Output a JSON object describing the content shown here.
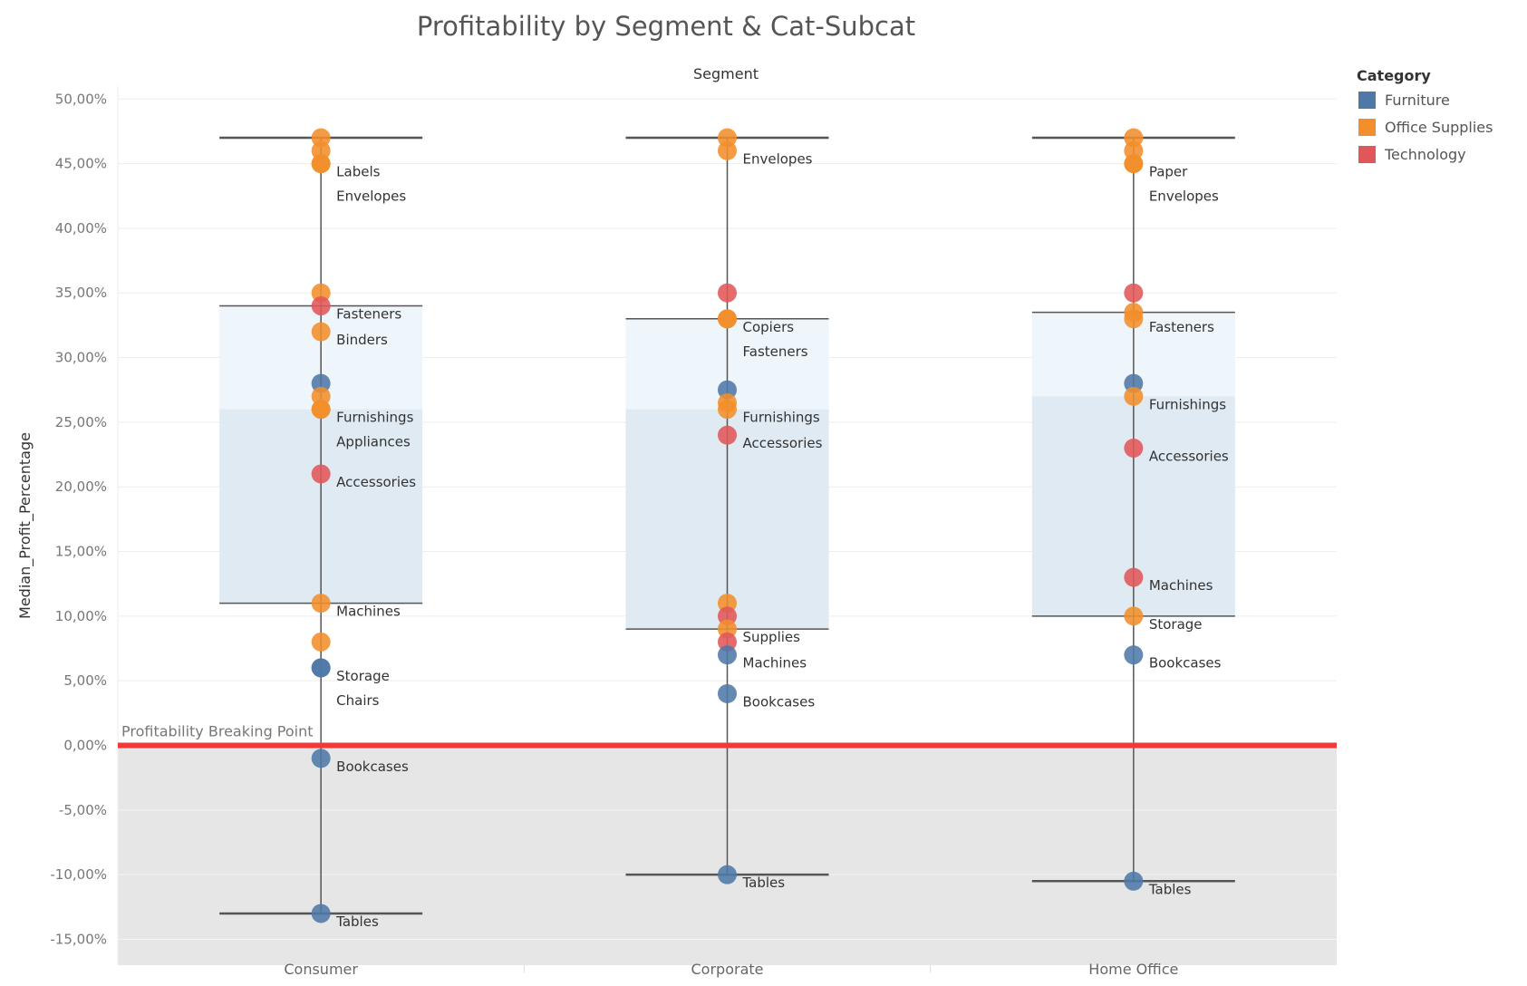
{
  "chart_data": {
    "type": "scatter",
    "title": "Profitability by Segment & Cat-Subcat",
    "column_header": "Segment",
    "ylabel": "Median_Profit_Percentage",
    "ylim": [
      -17,
      51
    ],
    "yticks": [
      50,
      45,
      40,
      35,
      30,
      25,
      20,
      15,
      10,
      5,
      0,
      -5,
      -10,
      -15
    ],
    "ytick_labels": [
      "50,00%",
      "45,00%",
      "40,00%",
      "35,00%",
      "30,00%",
      "25,00%",
      "20,00%",
      "15,00%",
      "10,00%",
      "5,00%",
      "0,00%",
      "-5,00%",
      "-10,00%",
      "-15,00%"
    ],
    "categories": [
      "Consumer",
      "Corporate",
      "Home Office"
    ],
    "grid": true,
    "legend": {
      "title": "Category",
      "position": "top-right",
      "items": [
        {
          "name": "Furniture",
          "color": "#4e79a7"
        },
        {
          "name": "Office Supplies",
          "color": "#f28e2b"
        },
        {
          "name": "Technology",
          "color": "#e15759"
        }
      ]
    },
    "reference_line": {
      "value": 0,
      "label": "Profitability Breaking Point",
      "color": "#f03a3a"
    },
    "boxes": [
      {
        "segment": "Consumer",
        "lower_whisker": -13,
        "q1": 11,
        "median": 26,
        "q3": 34,
        "upper_whisker": 47
      },
      {
        "segment": "Corporate",
        "lower_whisker": -10,
        "q1": 9,
        "median": 26,
        "q3": 33,
        "upper_whisker": 47
      },
      {
        "segment": "Home Office",
        "lower_whisker": -10.5,
        "q1": 10,
        "median": 27,
        "q3": 33.5,
        "upper_whisker": 47
      }
    ],
    "points": [
      {
        "segment": "Consumer",
        "category": "Office Supplies",
        "value": 47
      },
      {
        "segment": "Consumer",
        "category": "Office Supplies",
        "value": 46
      },
      {
        "segment": "Consumer",
        "category": "Office Supplies",
        "value": 45,
        "label": "Labels"
      },
      {
        "segment": "Consumer",
        "category": "Office Supplies",
        "value": 45,
        "label": "Envelopes"
      },
      {
        "segment": "Consumer",
        "category": "Office Supplies",
        "value": 35
      },
      {
        "segment": "Consumer",
        "category": "Technology",
        "value": 34,
        "label": "Fasteners"
      },
      {
        "segment": "Consumer",
        "category": "Office Supplies",
        "value": 32,
        "label": "Binders"
      },
      {
        "segment": "Consumer",
        "category": "Furniture",
        "value": 28
      },
      {
        "segment": "Consumer",
        "category": "Office Supplies",
        "value": 27
      },
      {
        "segment": "Consumer",
        "category": "Office Supplies",
        "value": 26,
        "label": "Furnishings"
      },
      {
        "segment": "Consumer",
        "category": "Office Supplies",
        "value": 26,
        "label": "Appliances"
      },
      {
        "segment": "Consumer",
        "category": "Technology",
        "value": 21,
        "label": "Accessories"
      },
      {
        "segment": "Consumer",
        "category": "Office Supplies",
        "value": 11,
        "label": "Machines"
      },
      {
        "segment": "Consumer",
        "category": "Office Supplies",
        "value": 8
      },
      {
        "segment": "Consumer",
        "category": "Furniture",
        "value": 6,
        "label": "Storage"
      },
      {
        "segment": "Consumer",
        "category": "Furniture",
        "value": 6,
        "label": "Chairs"
      },
      {
        "segment": "Consumer",
        "category": "Furniture",
        "value": -1,
        "label": "Bookcases"
      },
      {
        "segment": "Consumer",
        "category": "Furniture",
        "value": -13,
        "label": "Tables"
      },
      {
        "segment": "Corporate",
        "category": "Office Supplies",
        "value": 47
      },
      {
        "segment": "Corporate",
        "category": "Office Supplies",
        "value": 46,
        "label": "Envelopes"
      },
      {
        "segment": "Corporate",
        "category": "Technology",
        "value": 35
      },
      {
        "segment": "Corporate",
        "category": "Office Supplies",
        "value": 33,
        "label": "Copiers"
      },
      {
        "segment": "Corporate",
        "category": "Office Supplies",
        "value": 33,
        "label": "Fasteners"
      },
      {
        "segment": "Corporate",
        "category": "Furniture",
        "value": 27.5
      },
      {
        "segment": "Corporate",
        "category": "Office Supplies",
        "value": 26.5
      },
      {
        "segment": "Corporate",
        "category": "Office Supplies",
        "value": 26,
        "label": "Furnishings"
      },
      {
        "segment": "Corporate",
        "category": "Technology",
        "value": 24,
        "label": "Accessories"
      },
      {
        "segment": "Corporate",
        "category": "Office Supplies",
        "value": 11
      },
      {
        "segment": "Corporate",
        "category": "Technology",
        "value": 10
      },
      {
        "segment": "Corporate",
        "category": "Office Supplies",
        "value": 9,
        "label": "Supplies"
      },
      {
        "segment": "Corporate",
        "category": "Technology",
        "value": 8
      },
      {
        "segment": "Corporate",
        "category": "Furniture",
        "value": 7,
        "label": "Machines"
      },
      {
        "segment": "Corporate",
        "category": "Furniture",
        "value": 4,
        "label": "Bookcases"
      },
      {
        "segment": "Corporate",
        "category": "Furniture",
        "value": -10,
        "label": "Tables"
      },
      {
        "segment": "Home Office",
        "category": "Office Supplies",
        "value": 47
      },
      {
        "segment": "Home Office",
        "category": "Office Supplies",
        "value": 46
      },
      {
        "segment": "Home Office",
        "category": "Office Supplies",
        "value": 45,
        "label": "Paper"
      },
      {
        "segment": "Home Office",
        "category": "Office Supplies",
        "value": 45,
        "label": "Envelopes"
      },
      {
        "segment": "Home Office",
        "category": "Technology",
        "value": 35
      },
      {
        "segment": "Home Office",
        "category": "Office Supplies",
        "value": 33.5
      },
      {
        "segment": "Home Office",
        "category": "Office Supplies",
        "value": 33,
        "label": "Fasteners"
      },
      {
        "segment": "Home Office",
        "category": "Furniture",
        "value": 28
      },
      {
        "segment": "Home Office",
        "category": "Office Supplies",
        "value": 27,
        "label": "Furnishings"
      },
      {
        "segment": "Home Office",
        "category": "Technology",
        "value": 23,
        "label": "Accessories"
      },
      {
        "segment": "Home Office",
        "category": "Technology",
        "value": 13,
        "label": "Machines"
      },
      {
        "segment": "Home Office",
        "category": "Office Supplies",
        "value": 10,
        "label": "Storage"
      },
      {
        "segment": "Home Office",
        "category": "Furniture",
        "value": 7,
        "label": "Bookcases"
      },
      {
        "segment": "Home Office",
        "category": "Furniture",
        "value": -10.5,
        "label": "Tables"
      }
    ]
  }
}
